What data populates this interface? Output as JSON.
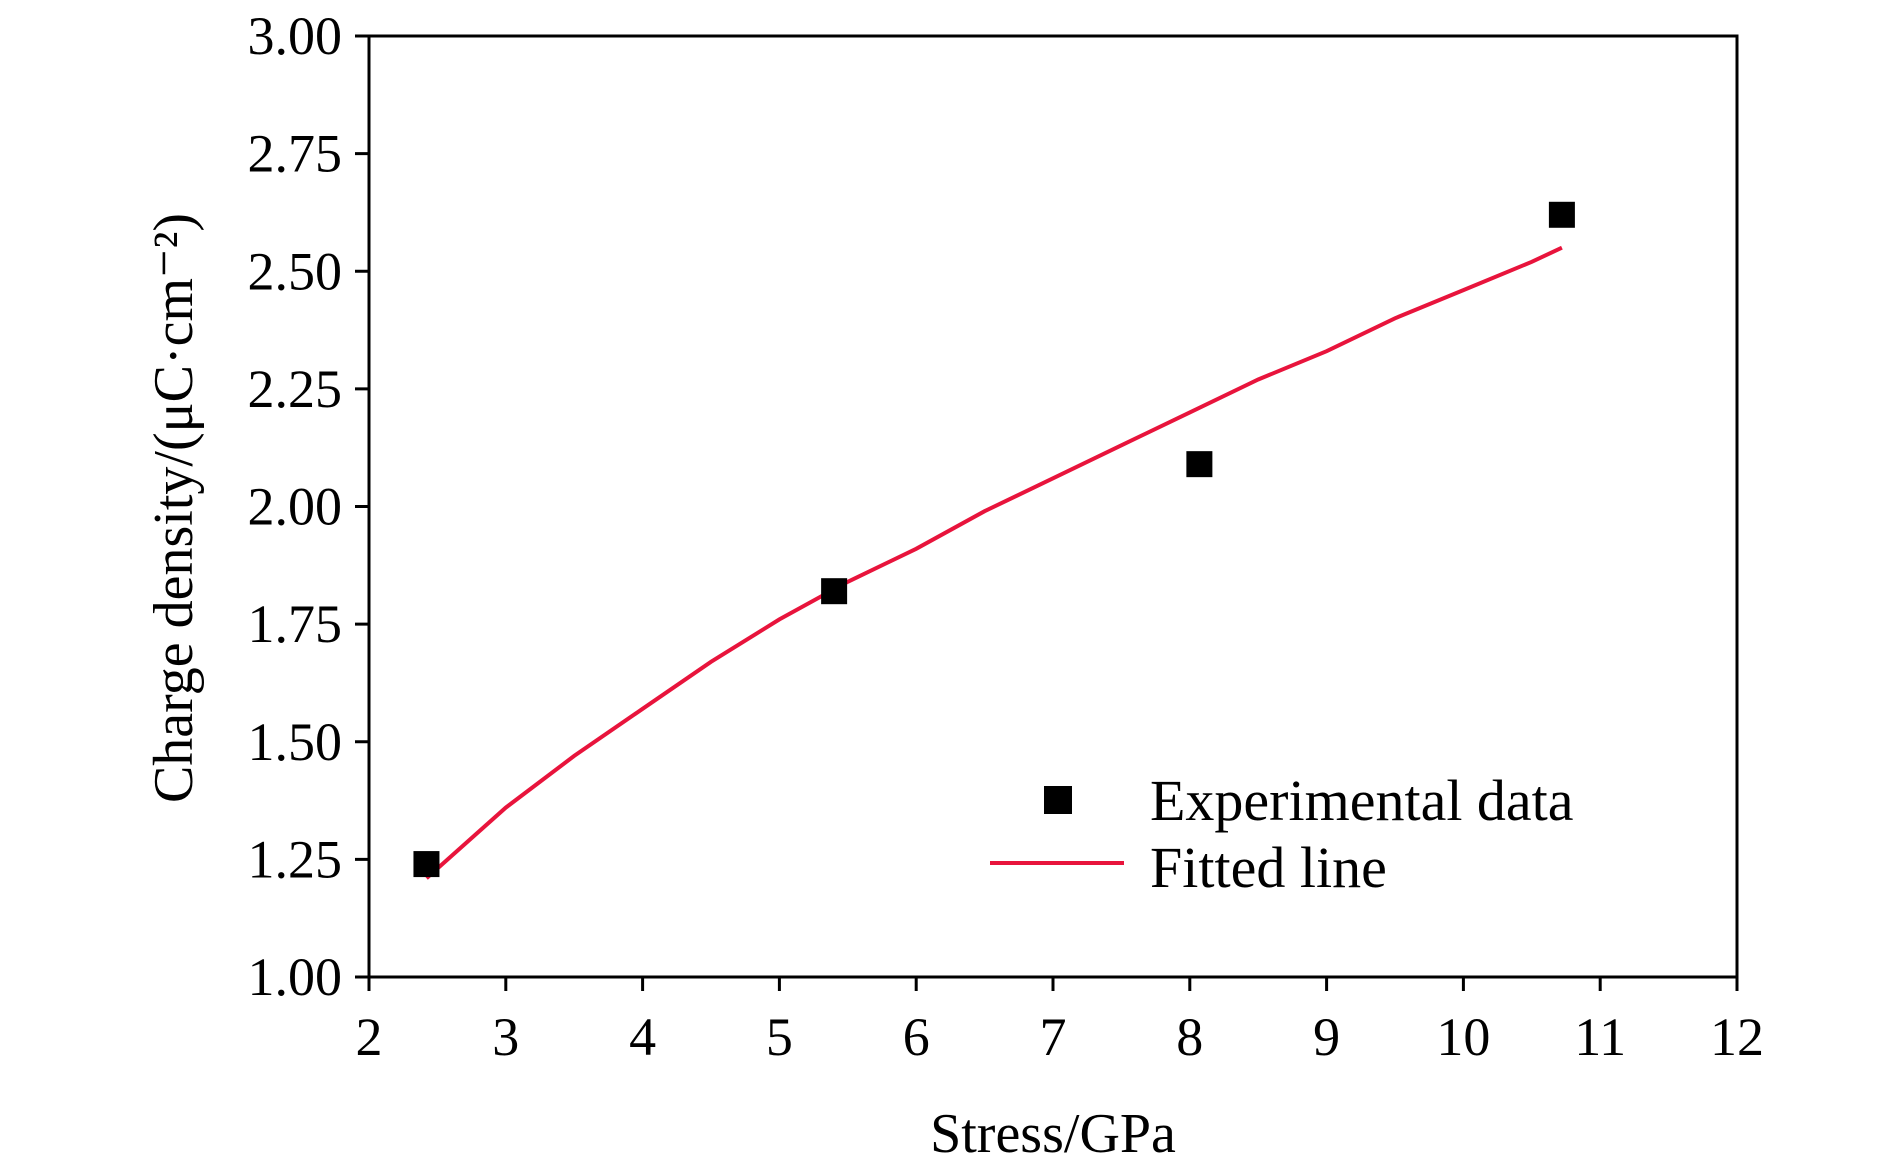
{
  "chart_data": {
    "type": "scatter",
    "title": "",
    "xlabel": "Stress/GPa",
    "ylabel": "Charge density/(μC·cm⁻²)",
    "xlim": [
      2,
      12
    ],
    "ylim": [
      1.0,
      3.0
    ],
    "x_ticks": [
      2,
      3,
      4,
      5,
      6,
      7,
      8,
      9,
      10,
      11,
      12
    ],
    "y_ticks": [
      1.0,
      1.25,
      1.5,
      1.75,
      2.0,
      2.25,
      2.5,
      2.75,
      3.0
    ],
    "x_tick_labels": [
      "2",
      "3",
      "4",
      "5",
      "6",
      "7",
      "8",
      "9",
      "10",
      "11",
      "12"
    ],
    "y_tick_labels": [
      "1.00",
      "1.25",
      "1.50",
      "1.75",
      "2.00",
      "2.25",
      "2.50",
      "2.75",
      "3.00"
    ],
    "grid": false,
    "legend_position": "bottom-right",
    "series": [
      {
        "name": "Experimental data",
        "kind": "scatter",
        "marker": "square",
        "color": "#000000",
        "x": [
          2.42,
          5.4,
          8.07,
          10.72
        ],
        "y": [
          1.24,
          1.82,
          2.09,
          2.62
        ]
      },
      {
        "name": "Fitted line",
        "kind": "line",
        "color": "#e8143c",
        "x": [
          2.42,
          3.0,
          3.5,
          4.0,
          4.5,
          5.0,
          5.5,
          6.0,
          6.5,
          7.0,
          7.5,
          8.0,
          8.5,
          9.0,
          9.5,
          10.0,
          10.5,
          10.72
        ],
        "y": [
          1.21,
          1.36,
          1.47,
          1.57,
          1.67,
          1.76,
          1.84,
          1.91,
          1.99,
          2.06,
          2.13,
          2.2,
          2.27,
          2.33,
          2.4,
          2.46,
          2.52,
          2.55
        ]
      }
    ]
  }
}
